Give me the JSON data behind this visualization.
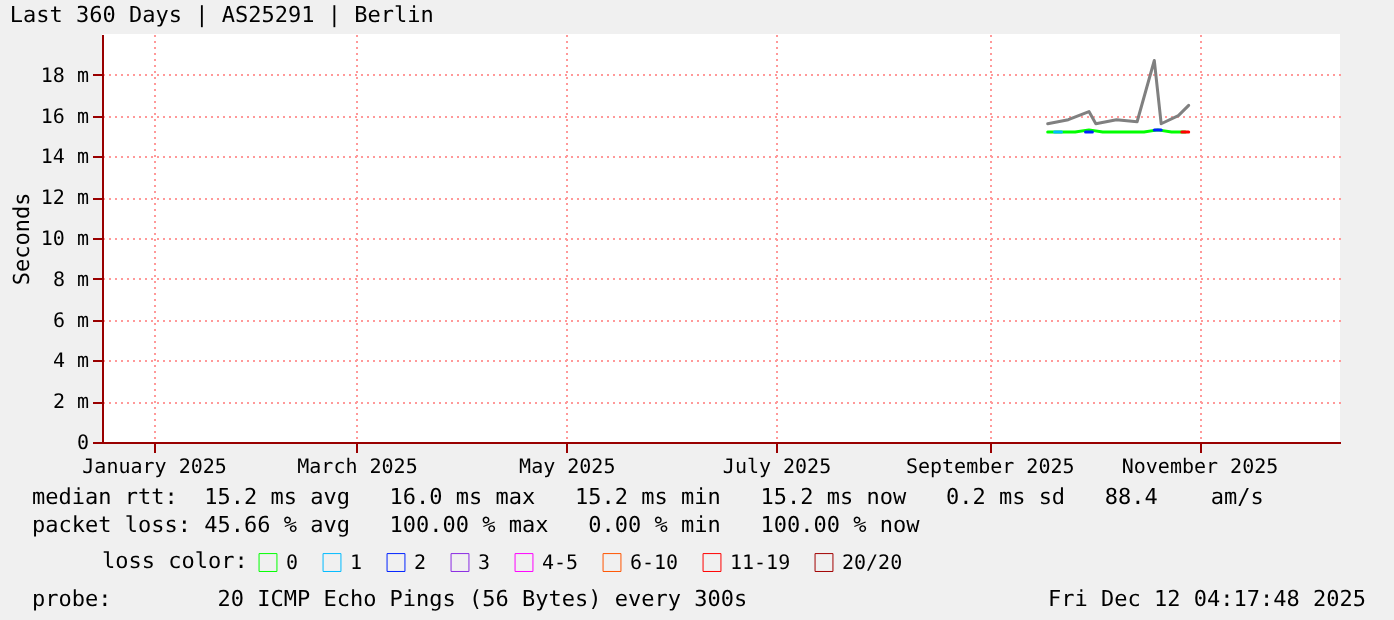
{
  "chart_data": {
    "type": "line",
    "title": "Last 360 Days | AS25291 | Berlin",
    "ylabel": "Seconds",
    "xlim": [
      "2024-12-17",
      "2025-12-12"
    ],
    "xticks": [
      {
        "value": "2025-01-01",
        "label": "January 2025"
      },
      {
        "value": "2025-03-01",
        "label": "March 2025"
      },
      {
        "value": "2025-05-01",
        "label": "May 2025"
      },
      {
        "value": "2025-07-01",
        "label": "July 2025"
      },
      {
        "value": "2025-09-01",
        "label": "September 2025"
      },
      {
        "value": "2025-11-01",
        "label": "November 2025"
      }
    ],
    "ylim": [
      0,
      20
    ],
    "yticks": [
      0,
      {
        "value": 2,
        "label": "2 m"
      },
      {
        "value": 4,
        "label": "4 m"
      },
      {
        "value": 6,
        "label": "6 m"
      },
      {
        "value": 8,
        "label": "8 m"
      },
      {
        "value": 10,
        "label": "10 m"
      },
      {
        "value": 12,
        "label": "12 m"
      },
      {
        "value": 14,
        "label": "14 m"
      },
      {
        "value": 16,
        "label": "16 m"
      },
      {
        "value": 18,
        "label": "18 m"
      }
    ],
    "grid": true,
    "legend": "bottom",
    "legend_title": "loss color:",
    "series": [
      {
        "color": "#808080",
        "x": [
          "2025-09-18",
          "2025-09-24",
          "2025-09-30",
          "2025-10-02",
          "2025-10-08",
          "2025-10-14",
          "2025-10-19",
          "2025-10-21",
          "2025-10-26",
          "2025-10-29"
        ],
        "values": [
          15.6,
          15.8,
          16.2,
          15.6,
          15.8,
          15.7,
          18.7,
          15.6,
          16.0,
          16.5
        ]
      },
      {
        "name": "0",
        "color": "#00ff00",
        "x": [
          "2025-09-18",
          "2025-09-22",
          "2025-09-26",
          "2025-09-30",
          "2025-10-04",
          "2025-10-08",
          "2025-10-12",
          "2025-10-16",
          "2025-10-20",
          "2025-10-24",
          "2025-10-28"
        ],
        "values": [
          15.2,
          15.2,
          15.2,
          15.3,
          15.2,
          15.2,
          15.2,
          15.2,
          15.3,
          15.2,
          15.2
        ]
      },
      {
        "name": "1",
        "color": "#00bbff",
        "x": [
          "2025-09-20",
          "2025-09-22"
        ],
        "values": [
          15.2,
          15.2
        ]
      },
      {
        "name": "2",
        "color": "#0022ff",
        "x": [
          "2025-09-29",
          "2025-10-01",
          "2025-10-10",
          "2025-10-19",
          "2025-10-21"
        ],
        "values": [
          15.2,
          15.2,
          null,
          15.3,
          15.3
        ]
      },
      {
        "name": "3",
        "color": "#8a2be2"
      },
      {
        "name": "4-5",
        "color": "#ff00ff"
      },
      {
        "name": "6-10",
        "color": "#ff5500"
      },
      {
        "name": "11-19",
        "color": "#ff0000",
        "x": [
          "2025-10-27",
          "2025-10-29"
        ],
        "values": [
          15.2,
          15.2
        ]
      },
      {
        "name": "20/20",
        "color": "#a10000"
      }
    ],
    "annotations": [
      "median rtt:  15.2 ms avg   16.0 ms max   15.2 ms min   15.2 ms now   0.2 ms sd   88.4    am/s",
      "packet loss: 45.66 % avg   100.00 % max   0.00 % min   100.00 % now",
      "probe:        20 ICMP Echo Pings (56 Bytes) every 300s",
      "Fri Dec 12 04:17:48 2025"
    ]
  }
}
